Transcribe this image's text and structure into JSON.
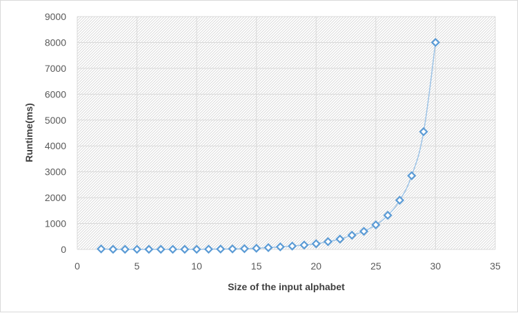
{
  "chart_data": {
    "type": "scatter",
    "title": "",
    "xlabel": "Size of the input alphabet",
    "ylabel": "Runtime(ms)",
    "xlim": [
      0,
      35
    ],
    "ylim": [
      0,
      9000
    ],
    "x_ticks": [
      0,
      5,
      10,
      15,
      20,
      25,
      30,
      35
    ],
    "y_ticks": [
      0,
      1000,
      2000,
      3000,
      4000,
      5000,
      6000,
      7000,
      8000,
      9000
    ],
    "grid": true,
    "legend": "none",
    "marker": "diamond-open",
    "line": "smooth",
    "colors": {
      "series": "#5b9bd5",
      "line": "#9dc3e6",
      "grid": "#d9d9d9",
      "hatch": "#d9d9d9"
    },
    "series": [
      {
        "x": [
          2,
          3,
          4,
          5,
          6,
          7,
          8,
          9,
          10,
          11,
          12,
          13,
          14,
          15,
          16,
          17,
          18,
          19,
          20,
          21,
          22,
          23,
          24,
          25,
          26,
          27,
          28,
          29,
          30
        ],
        "y": [
          20,
          5,
          5,
          5,
          5,
          5,
          5,
          5,
          5,
          10,
          15,
          20,
          30,
          45,
          70,
          100,
          130,
          170,
          220,
          300,
          400,
          550,
          700,
          950,
          1320,
          1900,
          2850,
          4550,
          8000
        ]
      }
    ]
  }
}
